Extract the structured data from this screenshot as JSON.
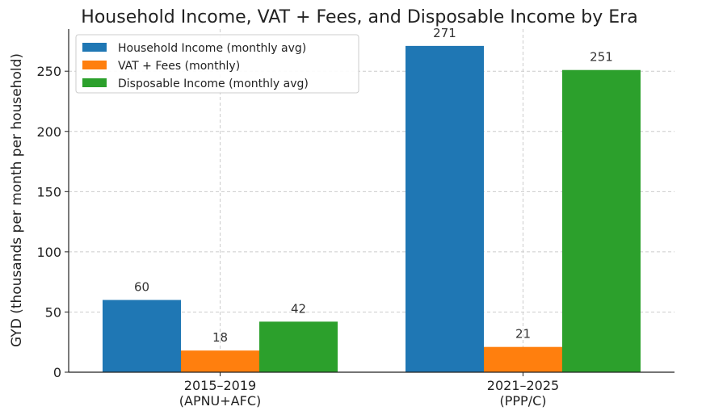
{
  "chart_data": {
    "type": "bar",
    "title": "Household Income, VAT + Fees, and Disposable Income by Era",
    "xlabel": "",
    "ylabel": "GYD (thousands per month per household)",
    "categories": [
      [
        "2015–2019",
        "(APNU+AFC)"
      ],
      [
        "2021–2025",
        "(PPP/C)"
      ]
    ],
    "series": [
      {
        "name": "Household Income (monthly avg)",
        "values": [
          60,
          271
        ],
        "labels": [
          "60",
          "271"
        ],
        "color": "#1f77b4"
      },
      {
        "name": "VAT + Fees (monthly)",
        "values": [
          18,
          21
        ],
        "labels": [
          "18",
          "21"
        ],
        "color": "#ff7f0e"
      },
      {
        "name": "Disposable Income (monthly avg)",
        "values": [
          42,
          251
        ],
        "labels": [
          "42",
          "251"
        ],
        "color": "#2ca02c"
      }
    ],
    "ylim": [
      0,
      285
    ],
    "yticks": [
      0,
      50,
      100,
      150,
      200,
      250
    ],
    "grid": true,
    "legend_position": "top-left"
  }
}
